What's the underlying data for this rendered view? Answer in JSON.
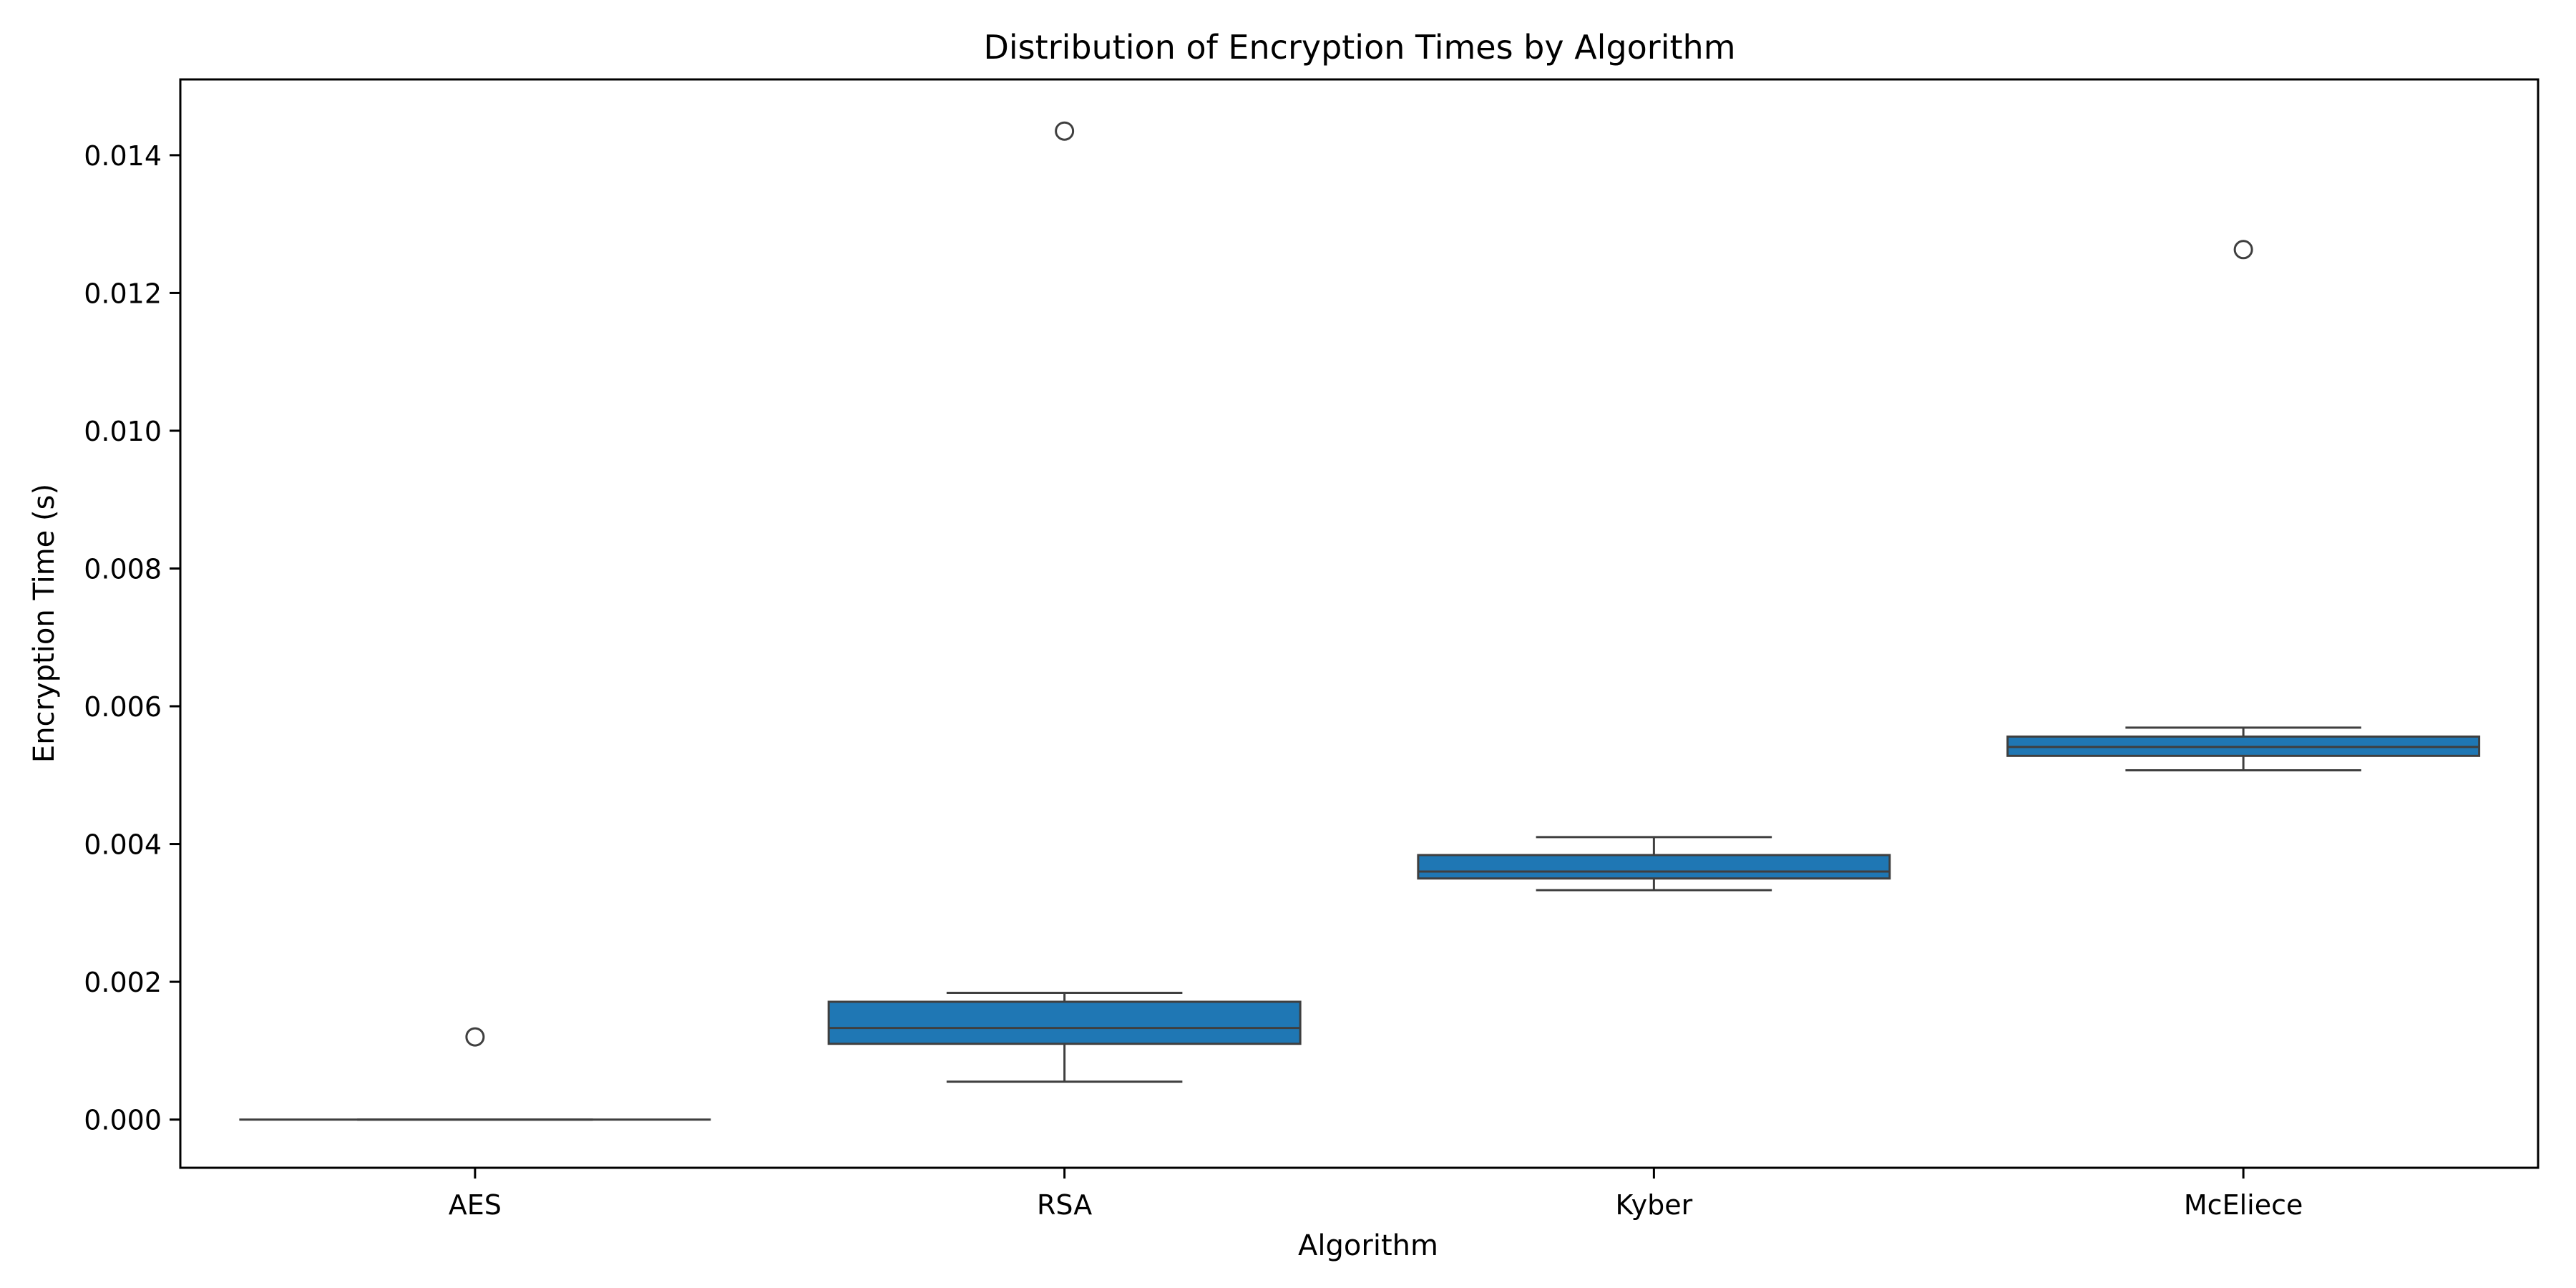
{
  "chart_data": {
    "type": "box",
    "title": "Distribution of Encryption Times by Algorithm",
    "xlabel": "Algorithm",
    "ylabel": "Encryption Time (s)",
    "ylim": [
      -0.0007,
      0.0151
    ],
    "yticks": [
      0.0,
      0.002,
      0.004,
      0.006,
      0.008,
      0.01,
      0.012,
      0.014
    ],
    "ytick_labels": [
      "0.000",
      "0.002",
      "0.004",
      "0.006",
      "0.008",
      "0.010",
      "0.012",
      "0.014"
    ],
    "grid": false,
    "legend": "none",
    "box_color": "#1f77b4",
    "line_color": "#3f3f3f",
    "categories": [
      "AES",
      "RSA",
      "Kyber",
      "McEliece"
    ],
    "boxes": [
      {
        "category": "AES",
        "whisker_low": 0.0,
        "q1": 0.0,
        "median": 0.0,
        "q3": 0.0,
        "whisker_high": 0.0,
        "outliers": [
          0.0012
        ]
      },
      {
        "category": "RSA",
        "whisker_low": 0.00055,
        "q1": 0.0011,
        "median": 0.00133,
        "q3": 0.00171,
        "whisker_high": 0.00184,
        "outliers": [
          0.01435
        ]
      },
      {
        "category": "Kyber",
        "whisker_low": 0.00333,
        "q1": 0.0035,
        "median": 0.0036,
        "q3": 0.00384,
        "whisker_high": 0.0041,
        "outliers": []
      },
      {
        "category": "McEliece",
        "whisker_low": 0.00507,
        "q1": 0.00528,
        "median": 0.00541,
        "q3": 0.00556,
        "whisker_high": 0.00569,
        "outliers": [
          0.01263
        ]
      }
    ]
  }
}
